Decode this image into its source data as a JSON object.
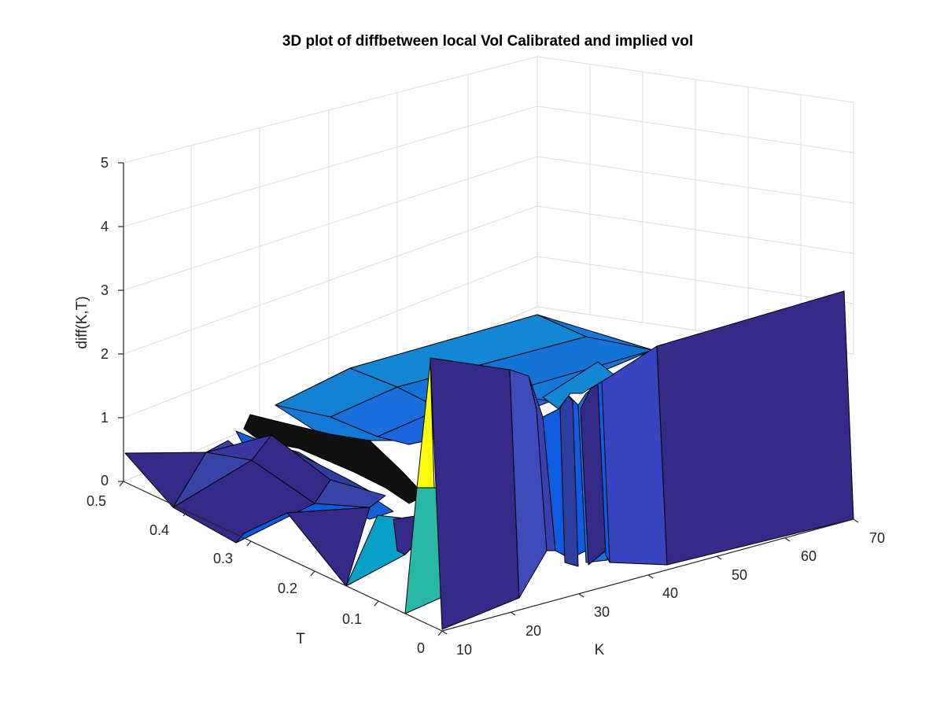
{
  "chart_data": {
    "type": "surface",
    "title": "3D plot of diffbetween local Vol Calibrated and implied vol",
    "xlabel": "K",
    "ylabel": "T",
    "zlabel": "diff(K,T)",
    "xlim": [
      10,
      70
    ],
    "ylim": [
      0,
      0.5
    ],
    "zlim": [
      0,
      5
    ],
    "x_ticks": [
      "10",
      "20",
      "30",
      "40",
      "50",
      "60",
      "70"
    ],
    "y_ticks": [
      "0",
      "0.1",
      "0.2",
      "0.3",
      "0.4",
      "0.5"
    ],
    "z_ticks": [
      "0",
      "1",
      "2",
      "3",
      "4",
      "5"
    ],
    "grid": true,
    "colormap": "parula",
    "colors": {
      "dark_blue": "#352a87",
      "indigo": "#3843a6",
      "blue": "#0f5ce1",
      "medium_blue": "#1373d7",
      "light_blue": "#1386d4",
      "cyan": "#08a0c6",
      "teal": "#2ab8a6",
      "yellow": "#f9fb0e",
      "black_edges": "#000000"
    }
  }
}
